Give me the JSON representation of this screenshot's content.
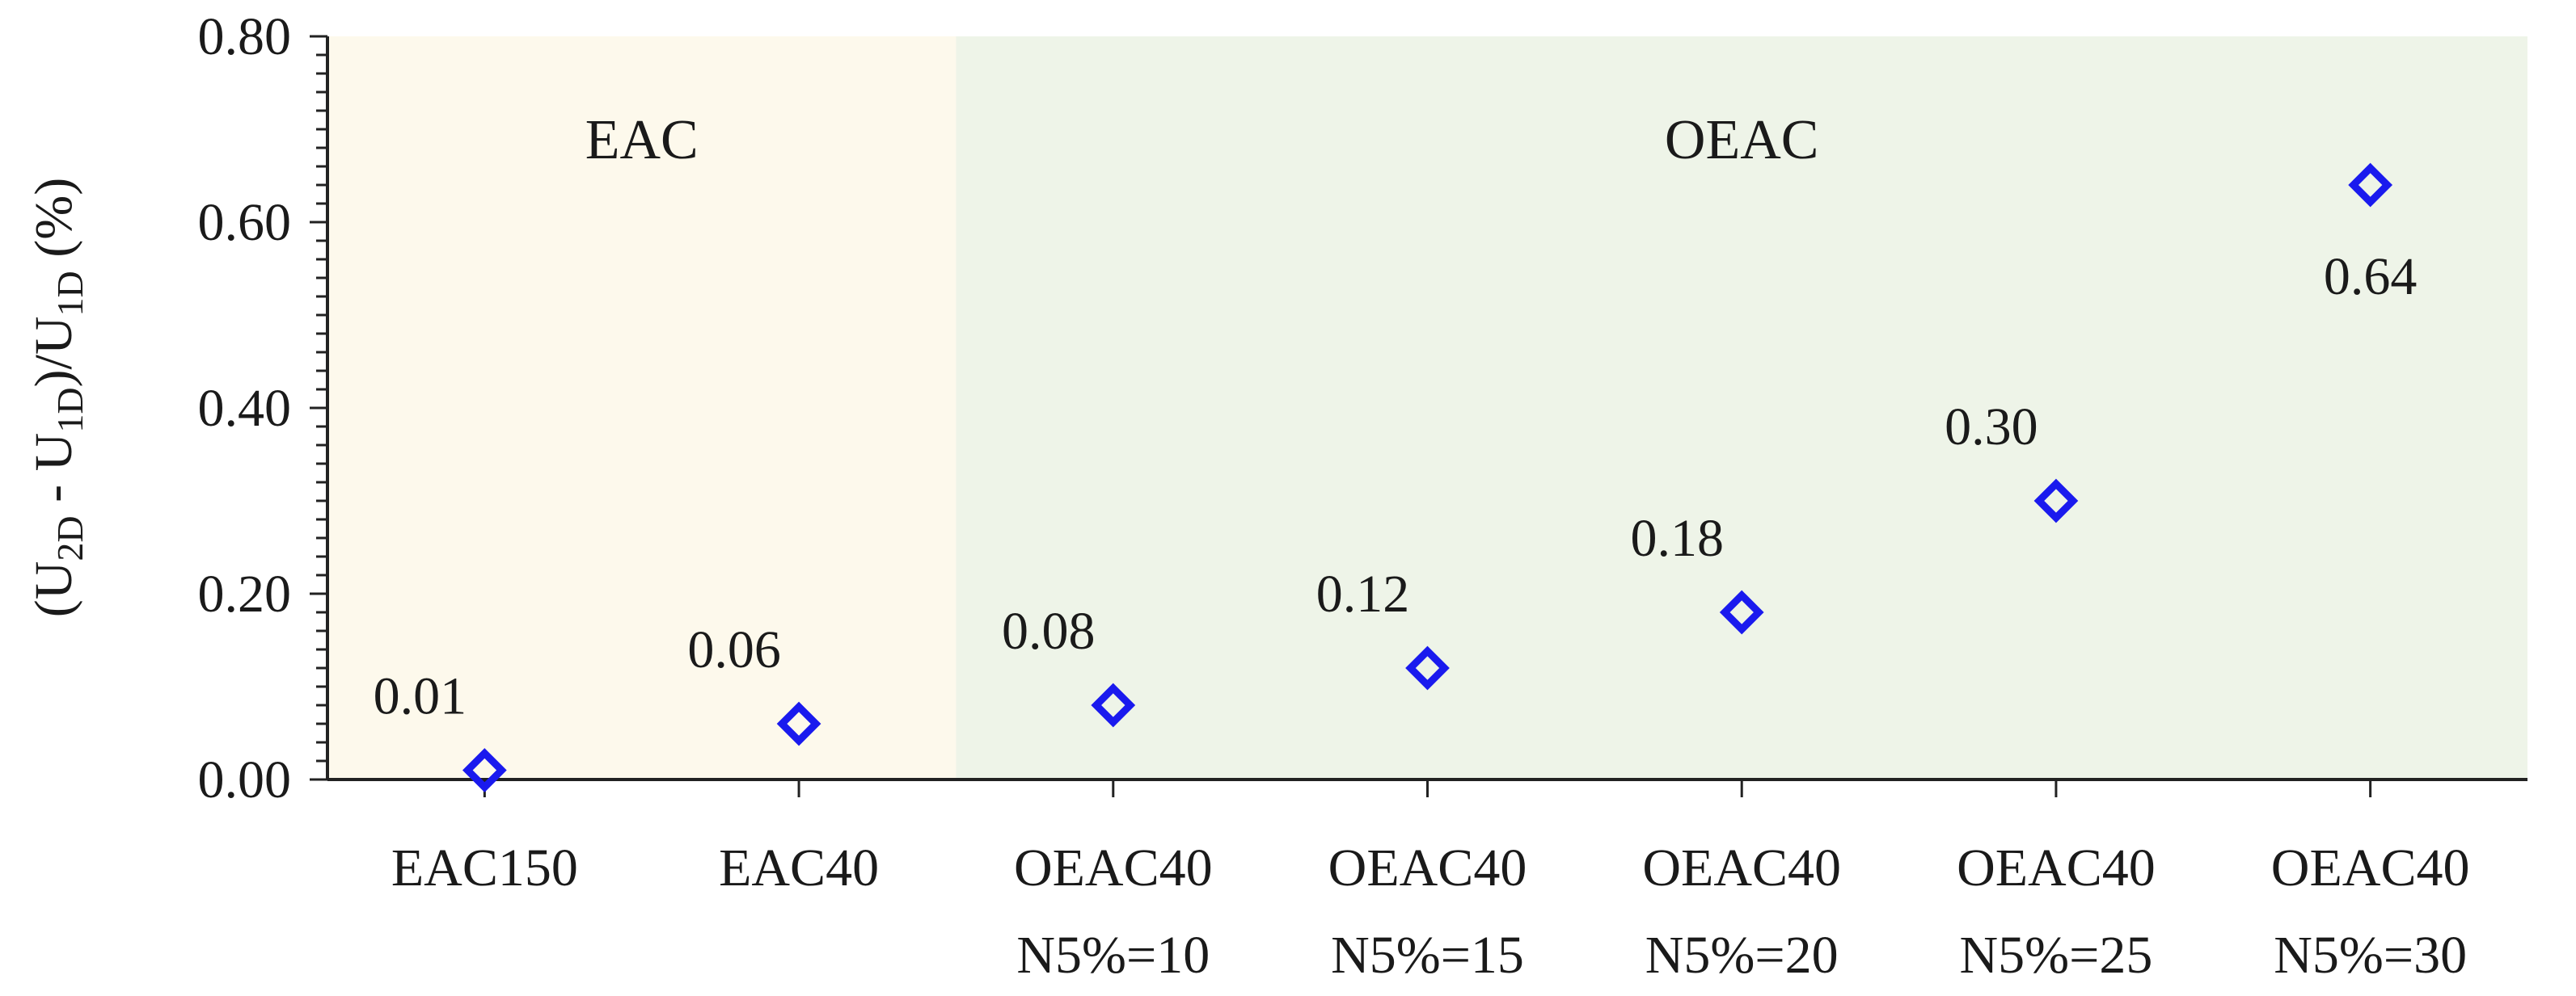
{
  "chart_data": {
    "type": "scatter",
    "title": "",
    "xlabel": "",
    "ylabel": {
      "open": "(U",
      "sub1": "2D",
      "mid": " - U",
      "sub2": "1D",
      "close": ")/U",
      "sub3": "1D",
      "unit": " (%)"
    },
    "ylim": [
      0,
      0.8
    ],
    "yticks": [
      "0.00",
      "0.20",
      "0.40",
      "0.60",
      "0.80"
    ],
    "categories": [
      [
        "EAC150"
      ],
      [
        "EAC40"
      ],
      [
        "OEAC40",
        "N5%=10"
      ],
      [
        "OEAC40",
        "N5%=15"
      ],
      [
        "OEAC40",
        "N5%=20"
      ],
      [
        "OEAC40",
        "N5%=25"
      ],
      [
        "OEAC40",
        "N5%=30"
      ]
    ],
    "series": [
      {
        "name": "(U2D - U1D)/U1D",
        "values": [
          0.01,
          0.06,
          0.08,
          0.12,
          0.18,
          0.3,
          0.64
        ],
        "data_labels": [
          "0.01",
          "0.06",
          "0.08",
          "0.12",
          "0.18",
          "0.30",
          "0.64"
        ],
        "marker": "diamond-open",
        "color": "#1a1aee"
      }
    ],
    "regions": [
      {
        "label": "EAC",
        "from_category": 0,
        "to_category": 1,
        "color": "#fdf9ec"
      },
      {
        "label": "OEAC",
        "from_category": 2,
        "to_category": 6,
        "color": "#eef4e8"
      }
    ]
  }
}
